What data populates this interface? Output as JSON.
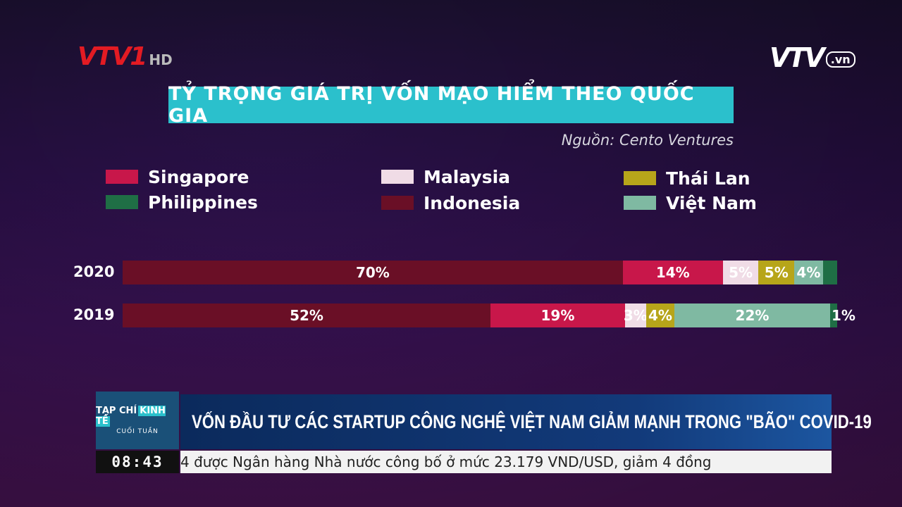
{
  "branding": {
    "channel_logo": "VTV1",
    "channel_hd": "HD",
    "site_logo": "VTV",
    "site_suffix": ".vn"
  },
  "chart_data": {
    "type": "bar",
    "orientation": "horizontal-stacked-100",
    "title": "TỶ TRỌNG GIÁ TRỊ VỐN MẠO HIỂM THEO QUỐC GIA",
    "source": "Nguồn: Cento Ventures",
    "legend": [
      {
        "name": "Singapore",
        "color": "#c8174a"
      },
      {
        "name": "Philippines",
        "color": "#1f6e45"
      },
      {
        "name": "Malaysia",
        "color": "#f0dce6"
      },
      {
        "name": "Indonesia",
        "color": "#6a0f26"
      },
      {
        "name": "Thái Lan",
        "color": "#b7a51a"
      },
      {
        "name": "Việt Nam",
        "color": "#7fb9a2"
      }
    ],
    "categories": [
      "2020",
      "2019"
    ],
    "rows": [
      {
        "year": "2020",
        "segments": [
          {
            "series": "Indonesia",
            "value": 70,
            "label": "70%"
          },
          {
            "series": "Singapore",
            "value": 14,
            "label": "14%"
          },
          {
            "series": "Malaysia",
            "value": 5,
            "label": "5%"
          },
          {
            "series": "Thái Lan",
            "value": 5,
            "label": "5%"
          },
          {
            "series": "Việt Nam",
            "value": 4,
            "label": "4%"
          },
          {
            "series": "Philippines",
            "value": 2,
            "label": ""
          }
        ]
      },
      {
        "year": "2019",
        "segments": [
          {
            "series": "Indonesia",
            "value": 52,
            "label": "52%"
          },
          {
            "series": "Singapore",
            "value": 19,
            "label": "19%"
          },
          {
            "series": "Malaysia",
            "value": 3,
            "label": "3%"
          },
          {
            "series": "Thái Lan",
            "value": 4,
            "label": "4%"
          },
          {
            "series": "Việt Nam",
            "value": 22,
            "label": "22%"
          },
          {
            "series": "Philippines",
            "value": 1,
            "label": "1%"
          }
        ]
      }
    ]
  },
  "ticker": {
    "program_line1": "TẠP CHÍ",
    "program_line1_highlight": "KINH TẾ",
    "program_line2": "CUỐI TUẦN",
    "headline": "VỐN ĐẦU TƯ CÁC STARTUP CÔNG NGHỆ VIỆT NAM GIẢM MẠNH TRONG \"BÃO\" COVID-19",
    "clock": "08:43",
    "crawl": "4 được Ngân hàng Nhà nước công bố ở mức 23.179 VND/USD, giảm 4 đồng"
  }
}
